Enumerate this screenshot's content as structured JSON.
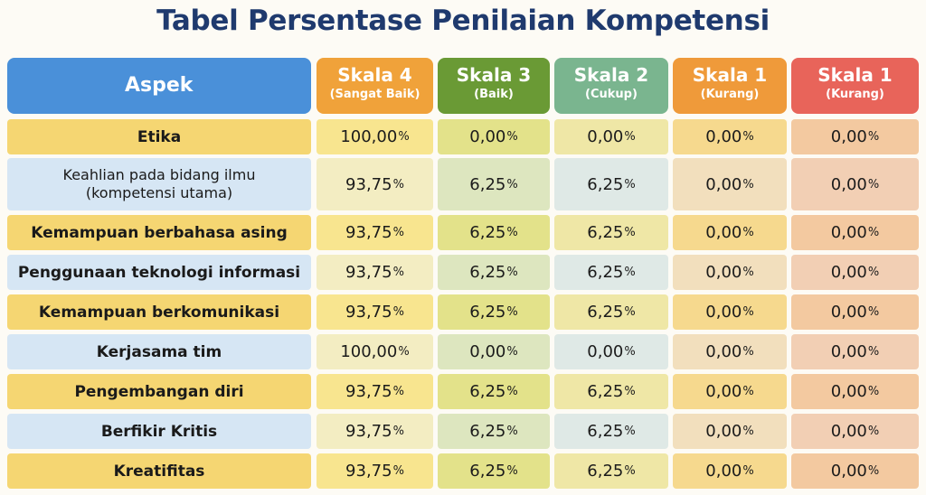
{
  "title": "Tabel Persentase Penilaian Kompetensi",
  "colors": {
    "title": "#1f3a6e",
    "header": [
      "#4a90d9",
      "#f0a23a",
      "#6a9a35",
      "#7ab58f",
      "#ef9a3a",
      "#e8645a"
    ],
    "row_yellow": "#f5d672",
    "row_blue": "#d6e6f4"
  },
  "chart_data": {
    "type": "table",
    "title": "Tabel Persentase Penilaian Kompetensi",
    "columns": [
      {
        "name": "Aspek",
        "sub": ""
      },
      {
        "name": "Skala 4",
        "sub": "(Sangat Baik)"
      },
      {
        "name": "Skala 3",
        "sub": "(Baik)"
      },
      {
        "name": "Skala 2",
        "sub": "(Cukup)"
      },
      {
        "name": "Skala 1",
        "sub": "(Kurang)"
      },
      {
        "name": "Skala 1",
        "sub": "(Kurang)"
      }
    ],
    "unit": "%",
    "rows": [
      {
        "aspek": "Etika",
        "aspek_line2": "",
        "values": [
          "100,00",
          "0,00",
          "0,00",
          "0,00",
          "0,00"
        ]
      },
      {
        "aspek": "Keahlian pada bidang ilmu",
        "aspek_line2": "(kompetensi utama)",
        "values": [
          "93,75",
          "6,25",
          "6,25",
          "0,00",
          "0,00"
        ]
      },
      {
        "aspek": "Kemampuan berbahasa asing",
        "aspek_line2": "",
        "values": [
          "93,75",
          "6,25",
          "6,25",
          "0,00",
          "0,00"
        ]
      },
      {
        "aspek": "Penggunaan teknologi informasi",
        "aspek_line2": "",
        "values": [
          "93,75",
          "6,25",
          "6,25",
          "0,00",
          "0,00"
        ]
      },
      {
        "aspek": "Kemampuan berkomunikasi",
        "aspek_line2": "",
        "values": [
          "93,75",
          "6,25",
          "6,25",
          "0,00",
          "0,00"
        ]
      },
      {
        "aspek": "Kerjasama tim",
        "aspek_line2": "",
        "values": [
          "100,00",
          "0,00",
          "0,00",
          "0,00",
          "0,00"
        ]
      },
      {
        "aspek": "Pengembangan diri",
        "aspek_line2": "",
        "values": [
          "93,75",
          "6,25",
          "6,25",
          "0,00",
          "0,00"
        ]
      },
      {
        "aspek": "Berfikir Kritis",
        "aspek_line2": "",
        "values": [
          "93,75",
          "6,25",
          "6,25",
          "0,00",
          "0,00"
        ]
      },
      {
        "aspek": "Kreatifitas",
        "aspek_line2": "",
        "values": [
          "93,75",
          "6,25",
          "6,25",
          "0,00",
          "0,00"
        ]
      }
    ]
  }
}
